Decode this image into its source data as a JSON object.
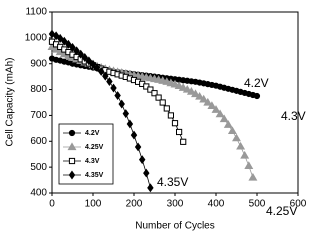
{
  "chart_data": {
    "type": "line",
    "x_label": "Number of Cycles",
    "y_label": "Cell Capacity (mAh)",
    "xlim": [
      0,
      600
    ],
    "xticks": [
      0,
      100,
      200,
      300,
      400,
      500,
      600
    ],
    "ylim": [
      400,
      1100
    ],
    "yticks": [
      400,
      500,
      600,
      700,
      800,
      900,
      1000,
      1100
    ],
    "legend": "left",
    "annotations": [
      "4.2V",
      "4.3V",
      "4.35V",
      "4.25V"
    ],
    "series": [
      {
        "name": "4.2V",
        "color": "#000000",
        "marker": "circle",
        "x": [
          0,
          10,
          20,
          30,
          40,
          50,
          60,
          70,
          80,
          90,
          100,
          110,
          120,
          130,
          140,
          150,
          160,
          170,
          180,
          190,
          200,
          210,
          220,
          230,
          240,
          250,
          260,
          270,
          280,
          290,
          300,
          310,
          320,
          330,
          340,
          350,
          360,
          370,
          380,
          390,
          400,
          410,
          420,
          430,
          440,
          450,
          460,
          470,
          480,
          490,
          500
        ],
        "values": [
          920,
          915,
          912,
          908,
          905,
          900,
          897,
          894,
          891,
          888,
          885,
          882,
          879,
          876,
          873,
          870,
          868,
          866,
          864,
          862,
          860,
          858,
          856,
          854,
          852,
          850,
          848,
          846,
          844,
          842,
          840,
          838,
          836,
          834,
          832,
          830,
          827,
          824,
          821,
          818,
          815,
          811,
          807,
          803,
          799,
          795,
          791,
          787,
          783,
          779,
          775
        ]
      },
      {
        "name": "4.25V",
        "color": "#999999",
        "marker": "triangle",
        "x": [
          0,
          10,
          20,
          30,
          40,
          50,
          60,
          70,
          80,
          90,
          100,
          110,
          120,
          130,
          140,
          150,
          160,
          170,
          180,
          190,
          200,
          210,
          220,
          230,
          240,
          250,
          260,
          270,
          280,
          290,
          300,
          310,
          320,
          330,
          340,
          350,
          360,
          370,
          380,
          390,
          400,
          410,
          420,
          430,
          440,
          450,
          460,
          470,
          480,
          490
        ],
        "values": [
          965,
          955,
          945,
          937,
          930,
          923,
          917,
          911,
          905,
          900,
          895,
          890,
          885,
          880,
          876,
          872,
          868,
          865,
          862,
          859,
          856,
          853,
          850,
          847,
          844,
          841,
          838,
          834,
          830,
          825,
          820,
          814,
          807,
          800,
          792,
          783,
          773,
          762,
          750,
          737,
          722,
          705,
          686,
          664,
          640,
          612,
          580,
          545,
          505,
          460
        ]
      },
      {
        "name": "4.3V",
        "color": "#000000",
        "marker": "square",
        "x": [
          0,
          10,
          20,
          30,
          40,
          50,
          60,
          70,
          80,
          90,
          100,
          110,
          120,
          130,
          140,
          150,
          160,
          170,
          180,
          190,
          200,
          210,
          220,
          230,
          240,
          250,
          260,
          270,
          280,
          290,
          300,
          310,
          320
        ],
        "values": [
          985,
          975,
          965,
          955,
          945,
          935,
          926,
          917,
          909,
          901,
          894,
          887,
          881,
          875,
          869,
          864,
          859,
          854,
          849,
          843,
          837,
          830,
          822,
          812,
          800,
          786,
          769,
          750,
          727,
          700,
          670,
          636,
          598
        ]
      },
      {
        "name": "4.35V",
        "color": "#000000",
        "marker": "diamond",
        "x": [
          0,
          10,
          20,
          30,
          40,
          50,
          60,
          70,
          80,
          90,
          100,
          110,
          120,
          130,
          140,
          150,
          160,
          170,
          180,
          190,
          200,
          210,
          220,
          230,
          240
        ],
        "values": [
          1015,
          1008,
          998,
          987,
          975,
          963,
          950,
          937,
          924,
          911,
          898,
          885,
          870,
          852,
          831,
          806,
          777,
          744,
          707,
          667,
          624,
          578,
          529,
          477,
          420
        ]
      }
    ]
  }
}
